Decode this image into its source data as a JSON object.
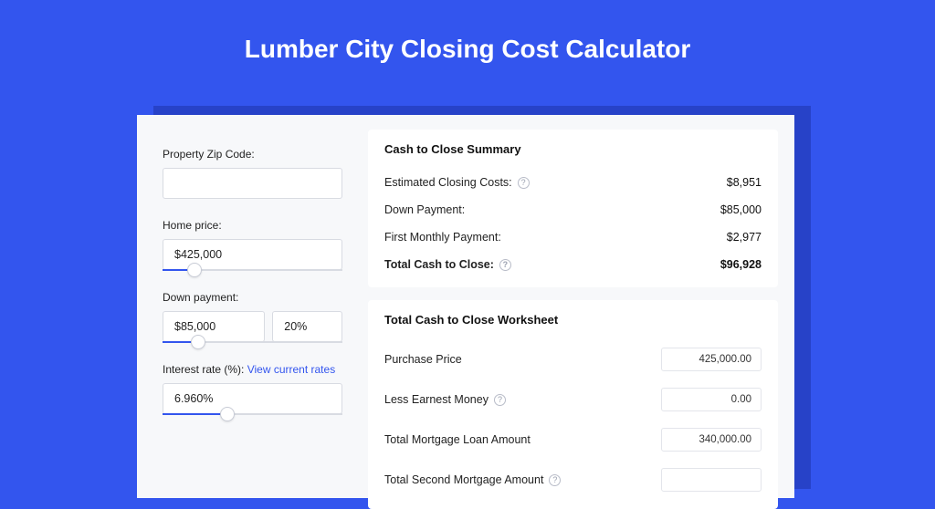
{
  "colors": {
    "page_bg": "#3355ee",
    "card_bg": "#f7f8fa",
    "shadow_bg": "#2742c8",
    "section_bg": "#ffffff",
    "border": "#d8dbe2",
    "text": "#222222",
    "link": "#3355ee"
  },
  "title": "Lumber City Closing Cost Calculator",
  "form": {
    "zip": {
      "label": "Property Zip Code:",
      "value": ""
    },
    "home_price": {
      "label": "Home price:",
      "value": "$425,000",
      "slider_pct": 18
    },
    "down_payment": {
      "label": "Down payment:",
      "amount": "$85,000",
      "percent": "20%",
      "slider_pct": 20
    },
    "interest_rate": {
      "label": "Interest rate (%): ",
      "link_text": "View current rates",
      "value": "6.960%",
      "slider_pct": 36
    }
  },
  "summary": {
    "title": "Cash to Close Summary",
    "rows": [
      {
        "label": "Estimated Closing Costs:",
        "help": true,
        "value": "$8,951",
        "bold": false
      },
      {
        "label": "Down Payment:",
        "help": false,
        "value": "$85,000",
        "bold": false
      },
      {
        "label": "First Monthly Payment:",
        "help": false,
        "value": "$2,977",
        "bold": false
      },
      {
        "label": "Total Cash to Close:",
        "help": true,
        "value": "$96,928",
        "bold": true
      }
    ]
  },
  "worksheet": {
    "title": "Total Cash to Close Worksheet",
    "rows": [
      {
        "label": "Purchase Price",
        "help": false,
        "value": "425,000.00"
      },
      {
        "label": "Less Earnest Money",
        "help": true,
        "value": "0.00"
      },
      {
        "label": "Total Mortgage Loan Amount",
        "help": false,
        "value": "340,000.00"
      },
      {
        "label": "Total Second Mortgage Amount",
        "help": true,
        "value": ""
      }
    ]
  }
}
